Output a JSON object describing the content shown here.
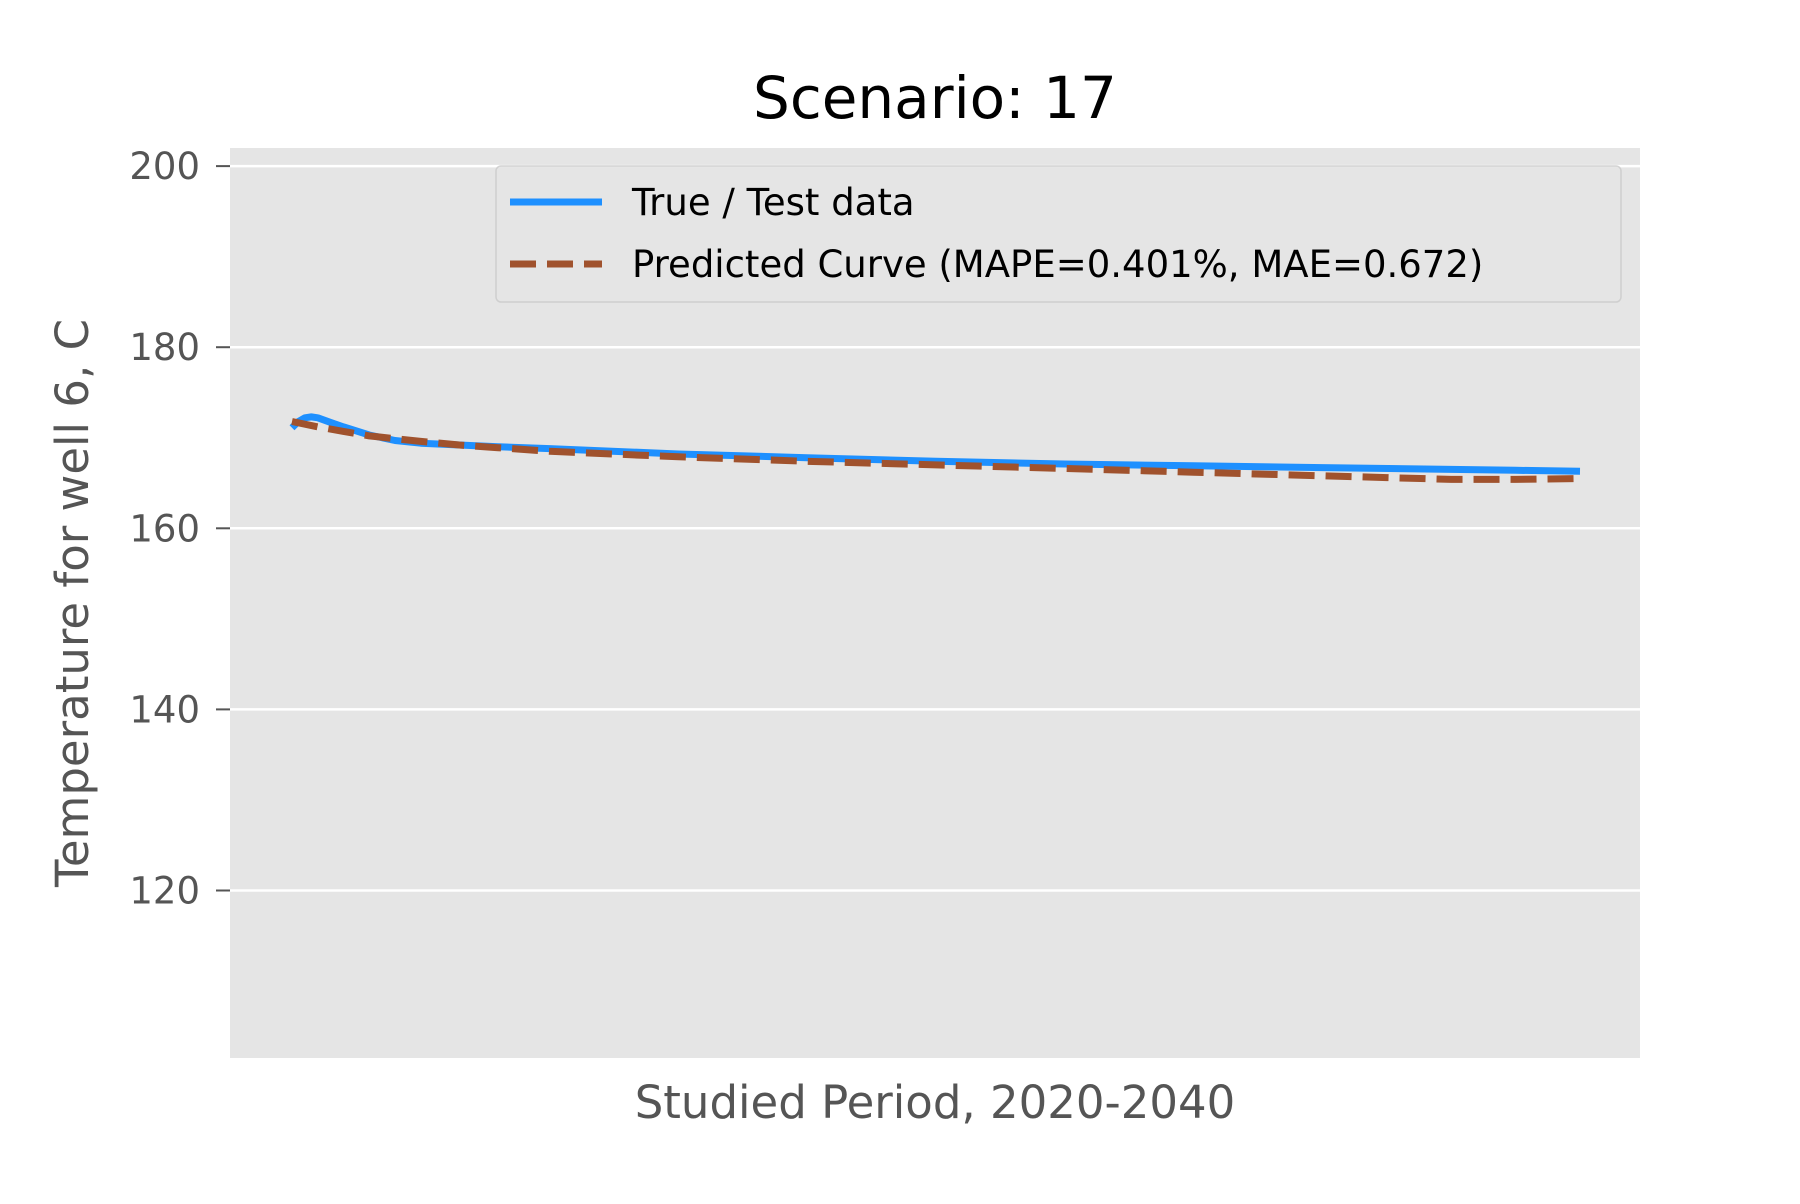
{
  "chart_data": {
    "type": "line",
    "title": "Scenario: 17",
    "xlabel": "Studied Period, 2020-2040",
    "ylabel": "Temperature for well 6, C",
    "ylim": [
      101.5,
      202
    ],
    "xlim": [
      0,
      1
    ],
    "yticks": [
      120,
      140,
      160,
      180,
      200
    ],
    "x_ticks_shown": false,
    "grid": "horizontal",
    "legend_position": "top-right",
    "series": [
      {
        "name": "True / Test data",
        "color": "#1e90ff",
        "style": "solid",
        "x": [
          0.0,
          0.005,
          0.01,
          0.015,
          0.02,
          0.03,
          0.04,
          0.06,
          0.08,
          0.1,
          0.13,
          0.16,
          0.2,
          0.3,
          0.4,
          0.5,
          0.6,
          0.7,
          0.8,
          0.9,
          0.95,
          1.0
        ],
        "y": [
          171.1,
          171.8,
          172.2,
          172.3,
          172.2,
          171.7,
          171.2,
          170.3,
          169.7,
          169.4,
          169.2,
          169.0,
          168.8,
          168.2,
          167.8,
          167.4,
          167.1,
          166.9,
          166.7,
          166.5,
          166.4,
          166.3
        ]
      },
      {
        "name": "Predicted Curve (MAPE=0.401%, MAE=0.672)",
        "color": "#a0522d",
        "style": "dashed",
        "x": [
          0.0,
          0.02,
          0.04,
          0.06,
          0.08,
          0.1,
          0.13,
          0.16,
          0.2,
          0.3,
          0.4,
          0.5,
          0.6,
          0.7,
          0.8,
          0.85,
          0.9,
          0.95,
          1.0
        ],
        "y": [
          171.8,
          171.2,
          170.7,
          170.2,
          169.9,
          169.6,
          169.2,
          168.9,
          168.5,
          167.9,
          167.4,
          167.0,
          166.6,
          166.2,
          165.8,
          165.6,
          165.4,
          165.4,
          165.5
        ]
      }
    ]
  }
}
